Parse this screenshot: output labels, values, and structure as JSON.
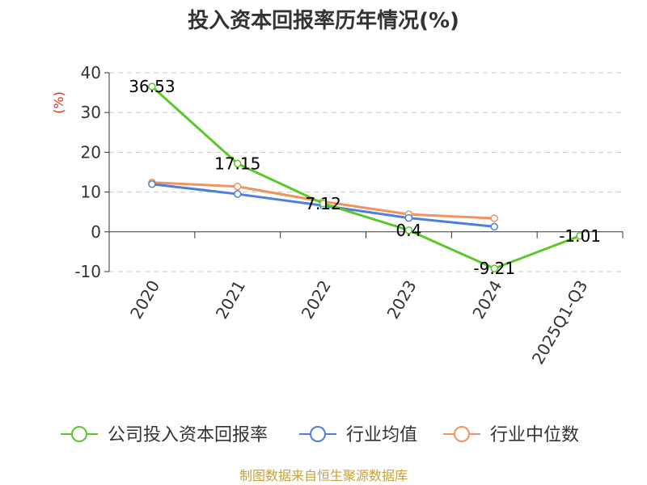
{
  "chart_data": {
    "type": "line",
    "title": "投入资本回报率历年情况(%)",
    "ylabel": "(%)",
    "categories": [
      "2020",
      "2021",
      "2022",
      "2023",
      "2024",
      "2025Q1-Q3"
    ],
    "ylim": [
      -10,
      40
    ],
    "yticks": [
      40,
      30,
      20,
      10,
      0,
      -10
    ],
    "grid": true,
    "legend_position": "bottom",
    "series": [
      {
        "name": "公司投入资本回报率",
        "color": "#5CC72A",
        "values": [
          36.53,
          17.15,
          7.12,
          0.4,
          -9.21,
          -1.01
        ],
        "labels": [
          "36.53",
          "17.15",
          "7.12",
          "0.4",
          "-9.21",
          "-1.01"
        ]
      },
      {
        "name": "行业均值",
        "color": "#4E7FDE",
        "values": [
          12.0,
          9.5,
          6.6,
          3.5,
          1.3,
          null
        ]
      },
      {
        "name": "行业中位数",
        "color": "#F2925C",
        "values": [
          12.4,
          11.4,
          7.6,
          4.4,
          3.4,
          null
        ]
      }
    ]
  },
  "source": {
    "text": "制图数据来自恒生聚源数据库",
    "color": "#C8A03A"
  },
  "colors": {
    "axis": "#333333",
    "grid": "#C8C8C8",
    "unit": "#E03020"
  }
}
